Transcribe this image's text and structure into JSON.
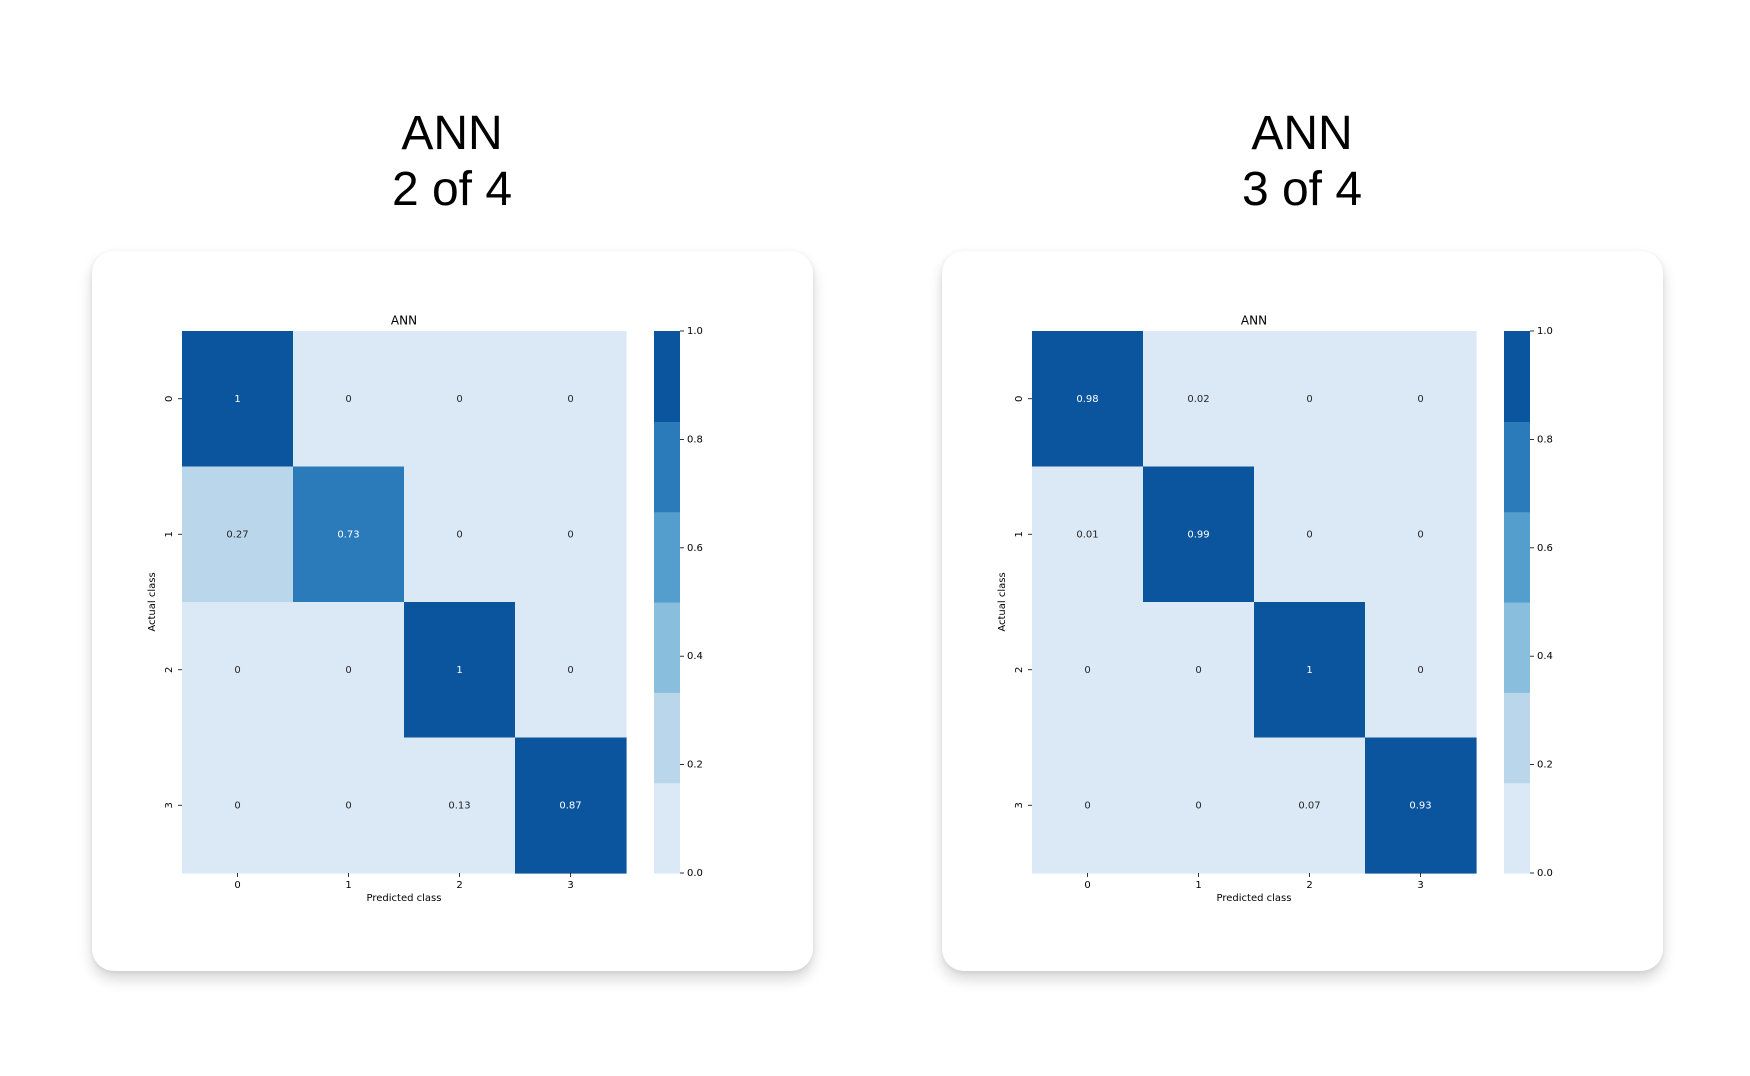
{
  "slides": [
    {
      "caption_title": "ANN",
      "caption_page": "2 of 4",
      "chart_data": {
        "type": "heatmap",
        "title": "ANN",
        "xlabel": "Predicted class",
        "ylabel": "Actual class",
        "x_categories": [
          "0",
          "1",
          "2",
          "3"
        ],
        "y_categories": [
          "0",
          "1",
          "2",
          "3"
        ],
        "values": [
          [
            1,
            0,
            0,
            0
          ],
          [
            0.27,
            0.73,
            0,
            0
          ],
          [
            0,
            0,
            1,
            0
          ],
          [
            0,
            0,
            0.13,
            0.87
          ]
        ],
        "cell_labels": [
          [
            "1",
            "0",
            "0",
            "0"
          ],
          [
            "0.27",
            "0.73",
            "0",
            "0"
          ],
          [
            "0",
            "0",
            "1",
            "0"
          ],
          [
            "0",
            "0",
            "0.13",
            "0.87"
          ]
        ],
        "colorbar": {
          "range": [
            0,
            1
          ],
          "ticks": [
            "0.0",
            "0.2",
            "0.4",
            "0.6",
            "0.8",
            "1.0"
          ],
          "bins": 6,
          "colors": [
            "#dbe9f6",
            "#bad6eb",
            "#89bedc",
            "#539ecd",
            "#2b7bba",
            "#0b559f"
          ]
        },
        "grid": false,
        "legend": "colorbar-right"
      }
    },
    {
      "caption_title": "ANN",
      "caption_page": "3 of 4",
      "chart_data": {
        "type": "heatmap",
        "title": "ANN",
        "xlabel": "Predicted class",
        "ylabel": "Actual class",
        "x_categories": [
          "0",
          "1",
          "2",
          "3"
        ],
        "y_categories": [
          "0",
          "1",
          "2",
          "3"
        ],
        "values": [
          [
            0.98,
            0.02,
            0,
            0
          ],
          [
            0.01,
            0.99,
            0,
            0
          ],
          [
            0,
            0,
            1,
            0
          ],
          [
            0,
            0,
            0.07,
            0.93
          ]
        ],
        "cell_labels": [
          [
            "0.98",
            "0.02",
            "0",
            "0"
          ],
          [
            "0.01",
            "0.99",
            "0",
            "0"
          ],
          [
            "0",
            "0",
            "1",
            "0"
          ],
          [
            "0",
            "0",
            "0.07",
            "0.93"
          ]
        ],
        "colorbar": {
          "range": [
            0,
            1
          ],
          "ticks": [
            "0.0",
            "0.2",
            "0.4",
            "0.6",
            "0.8",
            "1.0"
          ],
          "bins": 6,
          "colors": [
            "#dbe9f6",
            "#bad6eb",
            "#89bedc",
            "#539ecd",
            "#2b7bba",
            "#0b559f"
          ]
        },
        "grid": false,
        "legend": "colorbar-right"
      }
    }
  ]
}
